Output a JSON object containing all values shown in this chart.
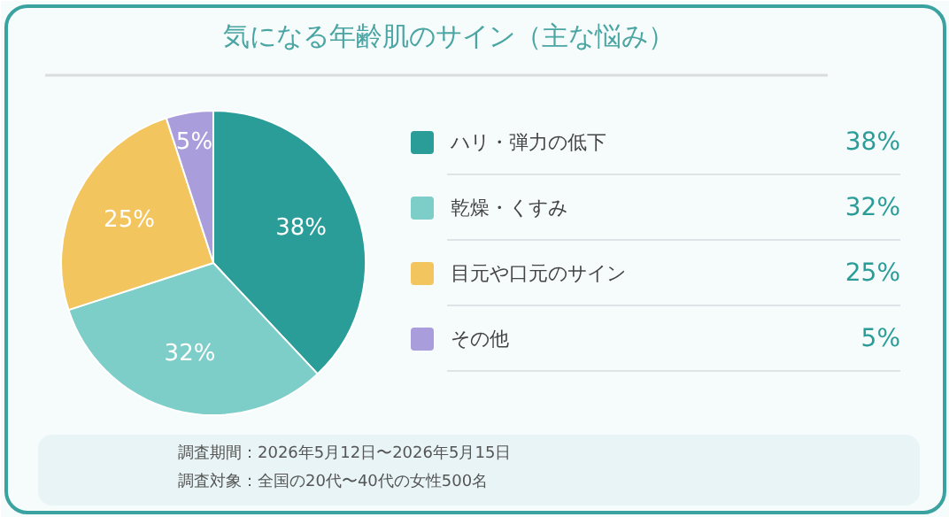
{
  "chart_data": {
    "type": "pie",
    "title": "気になる年齢肌のサイン（主な悩み）",
    "categories": [
      "ハリ・弾力の低下",
      "乾燥・くすみ",
      "目元や口元のサイン",
      "その他"
    ],
    "values": [
      38,
      32,
      25,
      5
    ],
    "colors": [
      "#2a9d99",
      "#7dcdc8",
      "#f2c55e",
      "#a99ddb"
    ],
    "value_labels": [
      "38%",
      "32%",
      "25%",
      "5%"
    ],
    "legend": "right",
    "annotations": [
      "調査期間：2026年5月12日〜2026年5月15日",
      "調査対象：全国の20代〜40代の女性500名"
    ]
  }
}
